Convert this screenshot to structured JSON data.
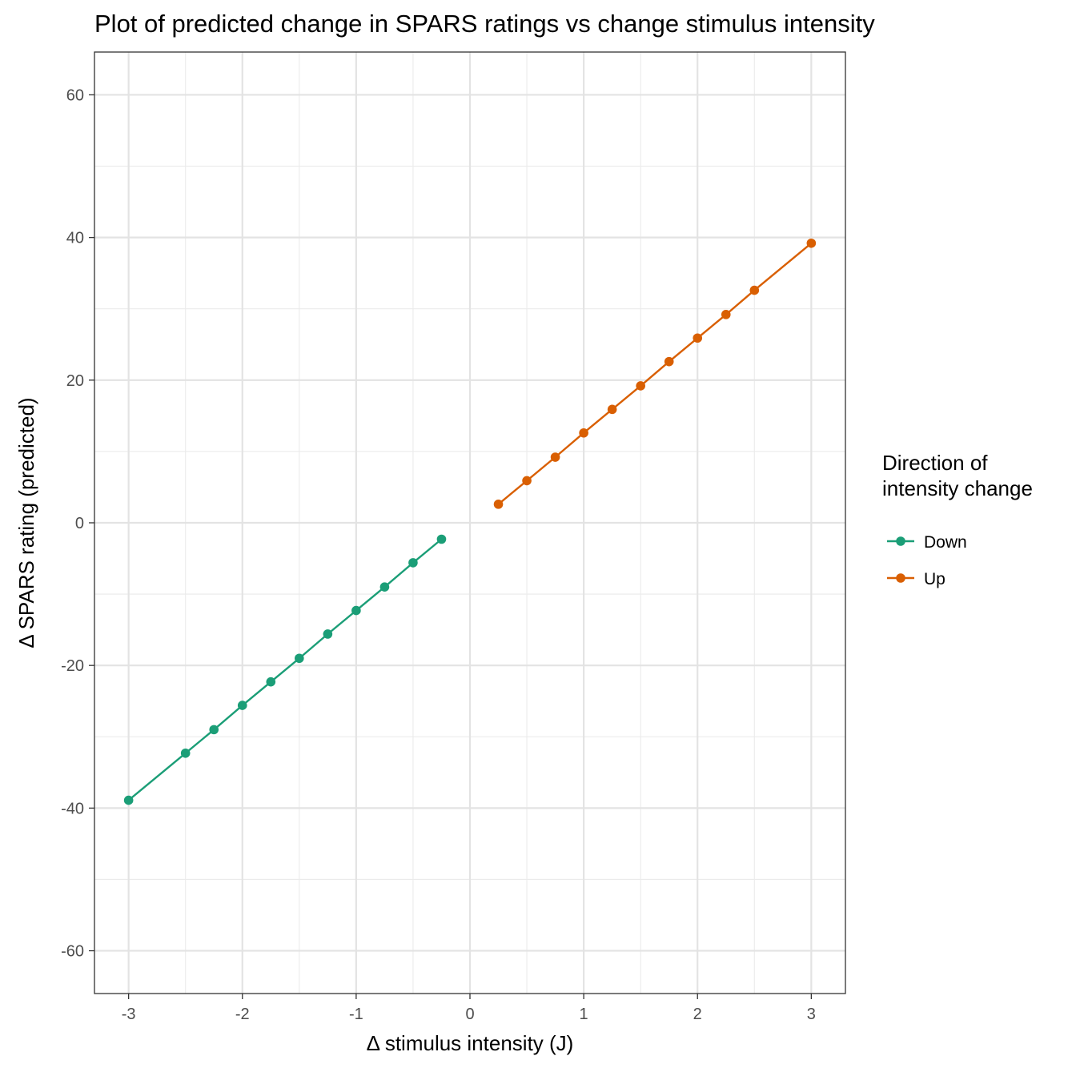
{
  "chart_data": {
    "type": "line",
    "title": "Plot of predicted change in SPARS ratings vs change stimulus intensity",
    "xlabel": "Δ stimulus intensity (J)",
    "ylabel": "Δ SPARS rating (predicted)",
    "xlim": [
      -3.3,
      3.3
    ],
    "ylim": [
      -66,
      66
    ],
    "xticks": [
      -3,
      -2,
      -1,
      0,
      1,
      2,
      3
    ],
    "xtick_labels": [
      "-3",
      "-2",
      "-1",
      "0",
      "1",
      "2",
      "3"
    ],
    "yticks": [
      -60,
      -40,
      -20,
      0,
      20,
      40,
      60
    ],
    "ytick_labels": [
      "-60",
      "-40",
      "-20",
      "0",
      "20",
      "40",
      "60"
    ],
    "grid": true,
    "legend": {
      "title_lines": [
        "Direction of",
        "intensity change"
      ],
      "position": "right"
    },
    "series": [
      {
        "name": "Down",
        "color": "#1b9e77",
        "x": [
          -3,
          -2.5,
          -2.25,
          -2,
          -1.75,
          -1.5,
          -1.25,
          -1,
          -0.75,
          -0.5,
          -0.25
        ],
        "y": [
          -38.9,
          -32.3,
          -29.0,
          -25.6,
          -22.3,
          -19.0,
          -15.6,
          -12.3,
          -9.0,
          -5.6,
          -2.3
        ]
      },
      {
        "name": "Up",
        "color": "#d95f02",
        "x": [
          0.25,
          0.5,
          0.75,
          1,
          1.25,
          1.5,
          1.75,
          2,
          2.25,
          2.5,
          3
        ],
        "y": [
          2.6,
          5.9,
          9.2,
          12.6,
          15.9,
          19.2,
          22.6,
          25.9,
          29.2,
          32.6,
          39.2
        ]
      }
    ]
  }
}
